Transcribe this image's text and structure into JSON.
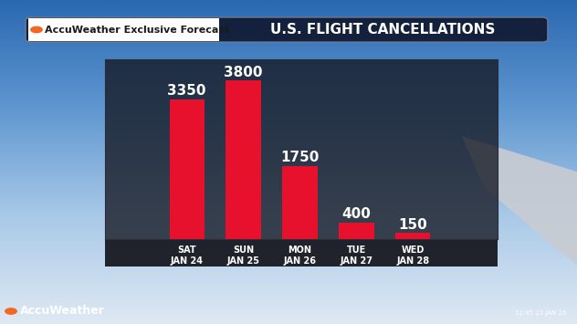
{
  "chart_data": {
    "type": "bar",
    "title": "U.S. FLIGHT CANCELLATIONS",
    "subtitle": "AccuWeather Exclusive Forecast",
    "annotations": [
      "AccuWeather",
      "12:45 23 JAN 26"
    ],
    "categories": [
      "SAT\nJAN 24",
      "SUN\nJAN 25",
      "MON\nJAN 26",
      "TUE\nJAN 27",
      "WED\nJAN 28"
    ],
    "values": [
      3350,
      3800,
      1750,
      400,
      150
    ],
    "color": "#e8112d",
    "ylim": [
      0,
      4300
    ],
    "yticks": [],
    "data_labels": true,
    "tick_labels": "x"
  }
}
